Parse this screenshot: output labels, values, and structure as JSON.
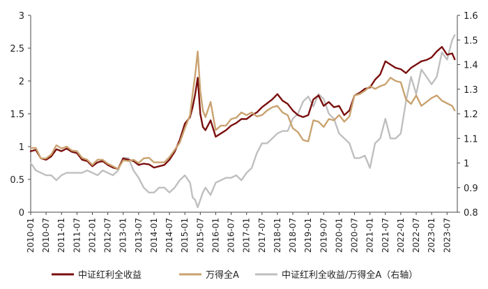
{
  "chart_data": {
    "type": "line",
    "x_categories": [
      "2010-01",
      "2010-07",
      "2011-01",
      "2011-07",
      "2012-01",
      "2012-07",
      "2013-01",
      "2013-07",
      "2014-01",
      "2014-07",
      "2015-01",
      "2015-07",
      "2016-01",
      "2016-07",
      "2017-01",
      "2017-07",
      "2018-01",
      "2018-07",
      "2019-01",
      "2019-07",
      "2020-01",
      "2020-07",
      "2021-01",
      "2021-07",
      "2022-01",
      "2022-07",
      "2023-01",
      "2023-07"
    ],
    "y_left": {
      "min": 0,
      "max": 3,
      "ticks": [
        "0",
        "0.5",
        "1",
        "1.5",
        "2",
        "2.5",
        "3"
      ]
    },
    "y_right": {
      "min": 0.8,
      "max": 1.6,
      "ticks": [
        "0.8",
        "0.9",
        "1",
        "1.1",
        "1.2",
        "1.3",
        "1.4",
        "1.5",
        "1.6"
      ]
    },
    "series": [
      {
        "name": "中证红利全收益",
        "axis": "left",
        "color": "#7a0e0e",
        "points": [
          [
            "2010-01",
            0.93
          ],
          [
            "2010-03",
            0.95
          ],
          [
            "2010-05",
            0.82
          ],
          [
            "2010-07",
            0.8
          ],
          [
            "2010-09",
            0.85
          ],
          [
            "2010-11",
            0.96
          ],
          [
            "2011-01",
            0.93
          ],
          [
            "2011-03",
            0.97
          ],
          [
            "2011-05",
            0.92
          ],
          [
            "2011-07",
            0.9
          ],
          [
            "2011-09",
            0.8
          ],
          [
            "2011-11",
            0.78
          ],
          [
            "2012-01",
            0.7
          ],
          [
            "2012-03",
            0.76
          ],
          [
            "2012-05",
            0.78
          ],
          [
            "2012-07",
            0.72
          ],
          [
            "2012-09",
            0.68
          ],
          [
            "2012-11",
            0.66
          ],
          [
            "2013-01",
            0.82
          ],
          [
            "2013-03",
            0.8
          ],
          [
            "2013-05",
            0.78
          ],
          [
            "2013-07",
            0.72
          ],
          [
            "2013-09",
            0.74
          ],
          [
            "2013-11",
            0.73
          ],
          [
            "2014-01",
            0.68
          ],
          [
            "2014-03",
            0.7
          ],
          [
            "2014-05",
            0.72
          ],
          [
            "2014-07",
            0.8
          ],
          [
            "2014-09",
            0.92
          ],
          [
            "2014-11",
            1.1
          ],
          [
            "2015-01",
            1.35
          ],
          [
            "2015-03",
            1.45
          ],
          [
            "2015-04",
            1.6
          ],
          [
            "2015-05",
            1.8
          ],
          [
            "2015-06",
            2.05
          ],
          [
            "2015-07",
            1.5
          ],
          [
            "2015-08",
            1.3
          ],
          [
            "2015-09",
            1.25
          ],
          [
            "2015-11",
            1.4
          ],
          [
            "2016-01",
            1.15
          ],
          [
            "2016-03",
            1.2
          ],
          [
            "2016-05",
            1.25
          ],
          [
            "2016-07",
            1.32
          ],
          [
            "2016-09",
            1.36
          ],
          [
            "2016-11",
            1.42
          ],
          [
            "2017-01",
            1.42
          ],
          [
            "2017-03",
            1.48
          ],
          [
            "2017-05",
            1.52
          ],
          [
            "2017-07",
            1.6
          ],
          [
            "2017-09",
            1.66
          ],
          [
            "2017-11",
            1.72
          ],
          [
            "2018-01",
            1.8
          ],
          [
            "2018-03",
            1.7
          ],
          [
            "2018-05",
            1.65
          ],
          [
            "2018-07",
            1.55
          ],
          [
            "2018-09",
            1.48
          ],
          [
            "2018-11",
            1.45
          ],
          [
            "2019-01",
            1.48
          ],
          [
            "2019-03",
            1.72
          ],
          [
            "2019-05",
            1.78
          ],
          [
            "2019-07",
            1.62
          ],
          [
            "2019-09",
            1.68
          ],
          [
            "2019-11",
            1.6
          ],
          [
            "2020-01",
            1.62
          ],
          [
            "2020-03",
            1.48
          ],
          [
            "2020-05",
            1.55
          ],
          [
            "2020-07",
            1.78
          ],
          [
            "2020-09",
            1.82
          ],
          [
            "2020-11",
            1.88
          ],
          [
            "2021-01",
            1.9
          ],
          [
            "2021-03",
            2.02
          ],
          [
            "2021-05",
            2.1
          ],
          [
            "2021-07",
            2.3
          ],
          [
            "2021-09",
            2.25
          ],
          [
            "2021-11",
            2.2
          ],
          [
            "2022-01",
            2.18
          ],
          [
            "2022-03",
            2.12
          ],
          [
            "2022-05",
            2.2
          ],
          [
            "2022-07",
            2.25
          ],
          [
            "2022-09",
            2.3
          ],
          [
            "2022-11",
            2.32
          ],
          [
            "2023-01",
            2.36
          ],
          [
            "2023-03",
            2.45
          ],
          [
            "2023-05",
            2.52
          ],
          [
            "2023-07",
            2.4
          ],
          [
            "2023-09",
            2.42
          ],
          [
            "2023-10",
            2.33
          ]
        ]
      },
      {
        "name": "万得全A",
        "axis": "left",
        "color": "#c9a26f",
        "points": [
          [
            "2010-01",
            0.98
          ],
          [
            "2010-03",
            0.98
          ],
          [
            "2010-05",
            0.82
          ],
          [
            "2010-07",
            0.82
          ],
          [
            "2010-09",
            0.88
          ],
          [
            "2010-11",
            1.02
          ],
          [
            "2011-01",
            0.97
          ],
          [
            "2011-03",
            1.0
          ],
          [
            "2011-05",
            0.94
          ],
          [
            "2011-07",
            0.93
          ],
          [
            "2011-09",
            0.83
          ],
          [
            "2011-11",
            0.8
          ],
          [
            "2012-01",
            0.72
          ],
          [
            "2012-03",
            0.8
          ],
          [
            "2012-05",
            0.8
          ],
          [
            "2012-07",
            0.74
          ],
          [
            "2012-09",
            0.7
          ],
          [
            "2012-11",
            0.66
          ],
          [
            "2013-01",
            0.79
          ],
          [
            "2013-03",
            0.78
          ],
          [
            "2013-05",
            0.8
          ],
          [
            "2013-07",
            0.75
          ],
          [
            "2013-09",
            0.82
          ],
          [
            "2013-11",
            0.83
          ],
          [
            "2014-01",
            0.76
          ],
          [
            "2014-03",
            0.76
          ],
          [
            "2014-05",
            0.76
          ],
          [
            "2014-07",
            0.84
          ],
          [
            "2014-09",
            0.95
          ],
          [
            "2014-11",
            1.06
          ],
          [
            "2015-01",
            1.28
          ],
          [
            "2015-03",
            1.48
          ],
          [
            "2015-04",
            1.8
          ],
          [
            "2015-05",
            2.1
          ],
          [
            "2015-06",
            2.45
          ],
          [
            "2015-07",
            1.85
          ],
          [
            "2015-08",
            1.55
          ],
          [
            "2015-09",
            1.45
          ],
          [
            "2015-11",
            1.68
          ],
          [
            "2016-01",
            1.25
          ],
          [
            "2016-03",
            1.32
          ],
          [
            "2016-05",
            1.32
          ],
          [
            "2016-07",
            1.42
          ],
          [
            "2016-09",
            1.44
          ],
          [
            "2016-11",
            1.52
          ],
          [
            "2017-01",
            1.48
          ],
          [
            "2017-03",
            1.52
          ],
          [
            "2017-05",
            1.46
          ],
          [
            "2017-07",
            1.48
          ],
          [
            "2017-09",
            1.55
          ],
          [
            "2017-11",
            1.6
          ],
          [
            "2018-01",
            1.62
          ],
          [
            "2018-03",
            1.52
          ],
          [
            "2018-05",
            1.48
          ],
          [
            "2018-07",
            1.28
          ],
          [
            "2018-09",
            1.22
          ],
          [
            "2018-11",
            1.1
          ],
          [
            "2019-01",
            1.08
          ],
          [
            "2019-03",
            1.4
          ],
          [
            "2019-05",
            1.38
          ],
          [
            "2019-07",
            1.3
          ],
          [
            "2019-09",
            1.42
          ],
          [
            "2019-11",
            1.4
          ],
          [
            "2020-01",
            1.48
          ],
          [
            "2020-03",
            1.38
          ],
          [
            "2020-05",
            1.46
          ],
          [
            "2020-07",
            1.78
          ],
          [
            "2020-09",
            1.8
          ],
          [
            "2020-11",
            1.85
          ],
          [
            "2021-01",
            1.92
          ],
          [
            "2021-03",
            1.88
          ],
          [
            "2021-05",
            1.92
          ],
          [
            "2021-07",
            1.95
          ],
          [
            "2021-09",
            2.05
          ],
          [
            "2021-11",
            2.0
          ],
          [
            "2022-01",
            1.98
          ],
          [
            "2022-03",
            1.72
          ],
          [
            "2022-05",
            1.65
          ],
          [
            "2022-07",
            1.78
          ],
          [
            "2022-09",
            1.62
          ],
          [
            "2022-11",
            1.68
          ],
          [
            "2023-01",
            1.74
          ],
          [
            "2023-03",
            1.78
          ],
          [
            "2023-05",
            1.7
          ],
          [
            "2023-07",
            1.66
          ],
          [
            "2023-09",
            1.62
          ],
          [
            "2023-10",
            1.55
          ]
        ]
      },
      {
        "name": "中证红利全收益/万得全A（右轴）",
        "axis": "right",
        "color": "#bfbfbf",
        "points": [
          [
            "2010-01",
            1.0
          ],
          [
            "2010-03",
            0.97
          ],
          [
            "2010-05",
            0.96
          ],
          [
            "2010-07",
            0.95
          ],
          [
            "2010-09",
            0.95
          ],
          [
            "2010-11",
            0.93
          ],
          [
            "2011-01",
            0.95
          ],
          [
            "2011-03",
            0.96
          ],
          [
            "2011-05",
            0.96
          ],
          [
            "2011-07",
            0.96
          ],
          [
            "2011-09",
            0.96
          ],
          [
            "2011-11",
            0.97
          ],
          [
            "2012-01",
            0.96
          ],
          [
            "2012-03",
            0.95
          ],
          [
            "2012-05",
            0.97
          ],
          [
            "2012-07",
            0.96
          ],
          [
            "2012-09",
            0.95
          ],
          [
            "2012-11",
            0.97
          ],
          [
            "2013-01",
            1.02
          ],
          [
            "2013-03",
            1.02
          ],
          [
            "2013-05",
            0.97
          ],
          [
            "2013-07",
            0.94
          ],
          [
            "2013-09",
            0.9
          ],
          [
            "2013-11",
            0.88
          ],
          [
            "2014-01",
            0.88
          ],
          [
            "2014-03",
            0.9
          ],
          [
            "2014-05",
            0.9
          ],
          [
            "2014-07",
            0.88
          ],
          [
            "2014-09",
            0.9
          ],
          [
            "2014-11",
            0.93
          ],
          [
            "2015-01",
            0.95
          ],
          [
            "2015-03",
            0.92
          ],
          [
            "2015-04",
            0.86
          ],
          [
            "2015-05",
            0.85
          ],
          [
            "2015-06",
            0.82
          ],
          [
            "2015-07",
            0.85
          ],
          [
            "2015-08",
            0.88
          ],
          [
            "2015-09",
            0.9
          ],
          [
            "2015-11",
            0.87
          ],
          [
            "2016-01",
            0.92
          ],
          [
            "2016-03",
            0.93
          ],
          [
            "2016-05",
            0.94
          ],
          [
            "2016-07",
            0.94
          ],
          [
            "2016-09",
            0.95
          ],
          [
            "2016-11",
            0.93
          ],
          [
            "2017-01",
            0.96
          ],
          [
            "2017-03",
            0.98
          ],
          [
            "2017-05",
            1.04
          ],
          [
            "2017-07",
            1.08
          ],
          [
            "2017-09",
            1.08
          ],
          [
            "2017-11",
            1.1
          ],
          [
            "2018-01",
            1.12
          ],
          [
            "2018-03",
            1.13
          ],
          [
            "2018-05",
            1.13
          ],
          [
            "2018-07",
            1.18
          ],
          [
            "2018-09",
            1.2
          ],
          [
            "2018-11",
            1.25
          ],
          [
            "2019-01",
            1.27
          ],
          [
            "2019-03",
            1.23
          ],
          [
            "2019-05",
            1.28
          ],
          [
            "2019-07",
            1.26
          ],
          [
            "2019-09",
            1.2
          ],
          [
            "2019-11",
            1.18
          ],
          [
            "2020-01",
            1.12
          ],
          [
            "2020-03",
            1.1
          ],
          [
            "2020-05",
            1.08
          ],
          [
            "2020-07",
            1.02
          ],
          [
            "2020-09",
            1.02
          ],
          [
            "2020-11",
            1.03
          ],
          [
            "2021-01",
            0.98
          ],
          [
            "2021-03",
            1.08
          ],
          [
            "2021-05",
            1.1
          ],
          [
            "2021-07",
            1.18
          ],
          [
            "2021-09",
            1.1
          ],
          [
            "2021-11",
            1.1
          ],
          [
            "2022-01",
            1.12
          ],
          [
            "2022-03",
            1.25
          ],
          [
            "2022-05",
            1.35
          ],
          [
            "2022-07",
            1.28
          ],
          [
            "2022-09",
            1.38
          ],
          [
            "2022-11",
            1.35
          ],
          [
            "2023-01",
            1.32
          ],
          [
            "2023-03",
            1.35
          ],
          [
            "2023-05",
            1.45
          ],
          [
            "2023-07",
            1.42
          ],
          [
            "2023-09",
            1.5
          ],
          [
            "2023-10",
            1.52
          ]
        ]
      }
    ]
  }
}
